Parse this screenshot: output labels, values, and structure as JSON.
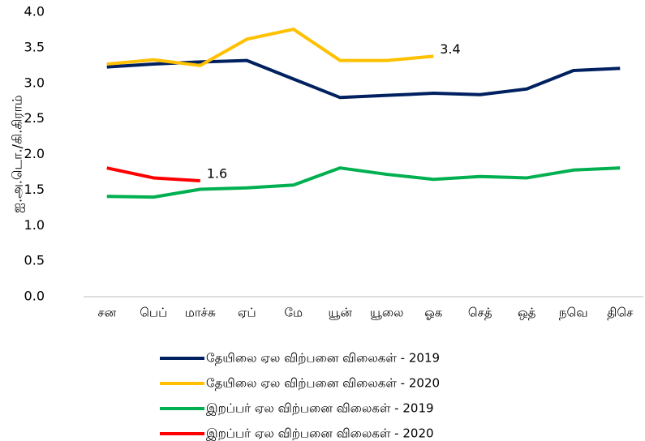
{
  "chart_data": {
    "type": "line",
    "y_label": "ஐ.அ.டொ./கி.கிராம்",
    "categories": [
      "சன",
      "பெப்",
      "மாச்சு",
      "ஏப்",
      "மே",
      "யூன்",
      "யூலை",
      "ஓக",
      "செத்",
      "ஒத்",
      "நவெ",
      "திசெ"
    ],
    "series": [
      {
        "name": "தேயிலை ஏல விற்பனை விலைகள் - 2019",
        "color": "#002060",
        "values": [
          3.23,
          3.27,
          3.3,
          3.32,
          3.06,
          2.8,
          2.83,
          2.86,
          2.84,
          2.92,
          3.18,
          3.21
        ]
      },
      {
        "name": "தேயிலை ஏல விற்பனை விலைகள் - 2020",
        "color": "#ffc000",
        "values": [
          3.27,
          3.33,
          3.25,
          3.62,
          3.76,
          3.32,
          3.32,
          3.38,
          null,
          null,
          null,
          null
        ],
        "value_labels": [
          null,
          null,
          null,
          null,
          null,
          null,
          null,
          "3.4",
          null,
          null,
          null,
          null
        ]
      },
      {
        "name": "இறப்பர் ஏல விற்பனை விலைகள் - 2019",
        "color": "#00b050",
        "values": [
          1.41,
          1.4,
          1.51,
          1.53,
          1.57,
          1.81,
          1.72,
          1.65,
          1.69,
          1.67,
          1.78,
          1.81
        ]
      },
      {
        "name": "இறப்பர் ஏல விற்பனை விலைகள் - 2020",
        "color": "#ff0000",
        "values": [
          1.81,
          1.67,
          1.63,
          null,
          null,
          null,
          null,
          null,
          null,
          null,
          null,
          null
        ],
        "value_labels": [
          null,
          null,
          "1.6",
          null,
          null,
          null,
          null,
          null,
          null,
          null,
          null,
          null
        ]
      }
    ],
    "ylim": [
      0,
      4
    ],
    "yticks": [
      {
        "value": 0,
        "label": "0.0"
      },
      0.5,
      {
        "value": 1,
        "label": "1.0"
      },
      1.5,
      {
        "value": 2,
        "label": "2.0"
      },
      2.5,
      {
        "value": 3,
        "label": "3.0"
      },
      3.5,
      {
        "value": 4,
        "label": "4.0"
      }
    ],
    "legend": "bottom"
  }
}
